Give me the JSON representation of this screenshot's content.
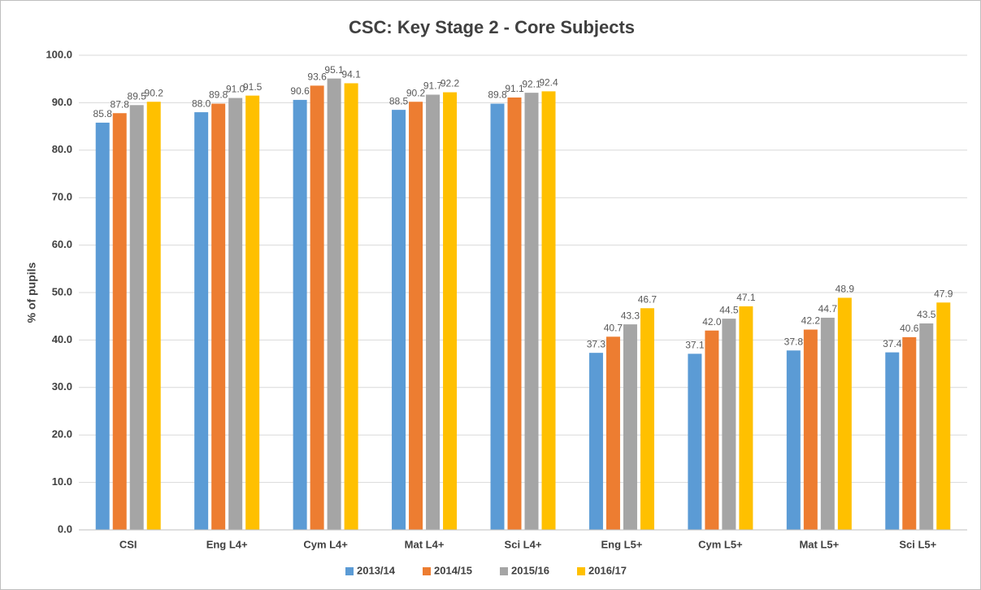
{
  "chart_data": {
    "type": "bar",
    "title": "CSC: Key Stage 2 - Core Subjects",
    "y_label": "% of pupils",
    "categories": [
      "CSI",
      "Eng L4+",
      "Cym L4+",
      "Mat L4+",
      "Sci L4+",
      "Eng L5+",
      "Cym L5+",
      "Mat L5+",
      "Sci L5+"
    ],
    "series": [
      {
        "name": "2013/14",
        "color": "#5b9bd5",
        "values": [
          85.8,
          88.0,
          90.6,
          88.5,
          89.8,
          37.3,
          37.1,
          37.8,
          37.4
        ],
        "value_labels": [
          "85.8",
          "88.0",
          "90.6",
          "88.5",
          "89.8",
          "37.3",
          "37.1",
          "37.8",
          "37.4"
        ]
      },
      {
        "name": "2014/15",
        "color": "#ed7d31",
        "values": [
          87.8,
          89.8,
          93.6,
          90.2,
          91.1,
          40.7,
          42.0,
          42.2,
          40.6
        ],
        "value_labels": [
          "87.8",
          "89.8",
          "93.6",
          "90.2",
          "91.1",
          "40.7",
          "42.0",
          "42.2",
          "40.6"
        ]
      },
      {
        "name": "2015/16",
        "color": "#a5a5a5",
        "values": [
          89.5,
          91.0,
          95.1,
          91.7,
          92.1,
          43.3,
          44.5,
          44.7,
          43.5
        ],
        "value_labels": [
          "89.5",
          "91.0",
          "95.1",
          "91.7",
          "92.1",
          "43.3",
          "44.5",
          "44.7",
          "43.5"
        ]
      },
      {
        "name": "2016/17",
        "color": "#ffc000",
        "values": [
          90.2,
          91.5,
          94.1,
          92.2,
          92.4,
          46.7,
          47.1,
          48.9,
          47.9
        ],
        "value_labels": [
          "90.2",
          "91.5",
          "94.1",
          "92.2",
          "92.4",
          "46.7",
          "47.1",
          "48.9",
          "47.9"
        ]
      }
    ],
    "ylim": [
      0,
      100
    ],
    "yticks": [
      {
        "value": 0,
        "label": "0.0"
      },
      {
        "value": 10,
        "label": "10.0"
      },
      {
        "value": 20,
        "label": "20.0"
      },
      {
        "value": 30,
        "label": "30.0"
      },
      {
        "value": 40,
        "label": "40.0"
      },
      {
        "value": 50,
        "label": "50.0"
      },
      {
        "value": 60,
        "label": "60.0"
      },
      {
        "value": 70,
        "label": "70.0"
      },
      {
        "value": 80,
        "label": "80.0"
      },
      {
        "value": 90,
        "label": "90.0"
      },
      {
        "value": 100,
        "label": "100.0"
      }
    ],
    "grid": true,
    "legend": "bottom"
  }
}
